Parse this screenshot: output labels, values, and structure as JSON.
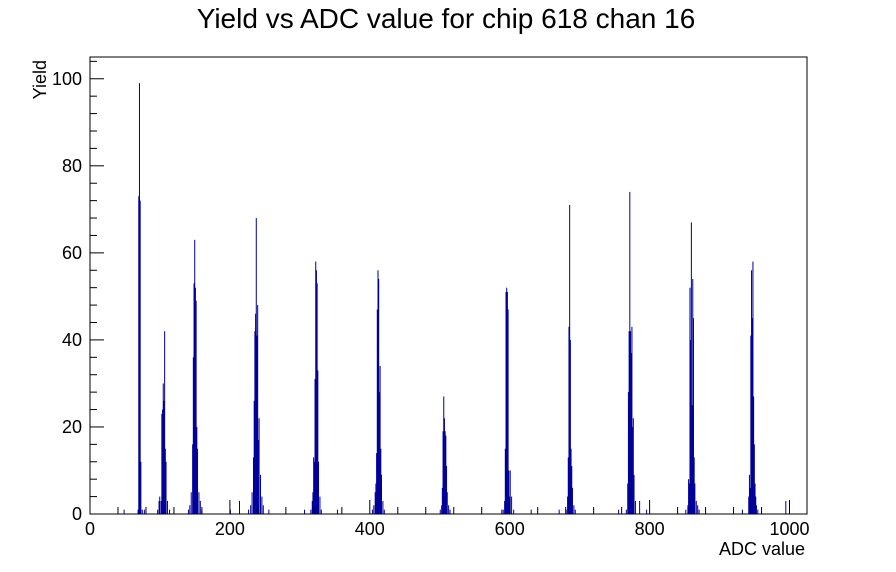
{
  "chart_data": {
    "type": "bar",
    "title": "Yield vs ADC value for chip 618 chan 16",
    "xlabel": "ADC value",
    "ylabel": "Yield",
    "xlim": [
      0,
      1025
    ],
    "ylim": [
      0,
      105
    ],
    "x_ticks": [
      0,
      200,
      400,
      600,
      800,
      1000
    ],
    "y_ticks": [
      0,
      20,
      40,
      60,
      80,
      100
    ],
    "grid": false,
    "series": [
      {
        "color": "#000099",
        "points": [
          [
            48,
            1
          ],
          [
            68,
            1
          ],
          [
            69,
            73
          ],
          [
            70,
            99
          ],
          [
            71,
            72
          ],
          [
            72,
            12
          ],
          [
            74,
            1
          ],
          [
            77,
            1
          ],
          [
            96,
            1
          ],
          [
            98,
            3
          ],
          [
            99,
            4
          ],
          [
            101,
            3
          ],
          [
            102,
            23
          ],
          [
            103,
            24
          ],
          [
            104,
            30
          ],
          [
            105,
            26
          ],
          [
            106,
            42
          ],
          [
            107,
            15
          ],
          [
            108,
            12
          ],
          [
            110,
            3
          ],
          [
            113,
            1
          ],
          [
            140,
            1
          ],
          [
            142,
            2
          ],
          [
            144,
            5
          ],
          [
            146,
            16
          ],
          [
            147,
            36
          ],
          [
            148,
            53
          ],
          [
            149,
            63
          ],
          [
            150,
            52
          ],
          [
            151,
            49
          ],
          [
            152,
            20
          ],
          [
            153,
            15
          ],
          [
            155,
            5
          ],
          [
            157,
            3
          ],
          [
            159,
            1
          ],
          [
            200,
            1
          ],
          [
            213,
            3
          ],
          [
            226,
            1
          ],
          [
            229,
            2
          ],
          [
            231,
            5
          ],
          [
            233,
            13
          ],
          [
            234,
            26
          ],
          [
            235,
            42
          ],
          [
            236,
            46
          ],
          [
            237,
            68
          ],
          [
            238,
            41
          ],
          [
            239,
            48
          ],
          [
            240,
            17
          ],
          [
            241,
            22
          ],
          [
            243,
            9
          ],
          [
            245,
            4
          ],
          [
            247,
            2
          ],
          [
            255,
            1
          ],
          [
            306,
            1
          ],
          [
            315,
            1
          ],
          [
            317,
            3
          ],
          [
            318,
            5
          ],
          [
            319,
            13
          ],
          [
            320,
            12
          ],
          [
            321,
            31
          ],
          [
            322,
            58
          ],
          [
            323,
            56
          ],
          [
            324,
            53
          ],
          [
            325,
            33
          ],
          [
            326,
            12
          ],
          [
            328,
            4
          ],
          [
            330,
            1
          ],
          [
            353,
            1
          ],
          [
            403,
            1
          ],
          [
            405,
            2
          ],
          [
            407,
            5
          ],
          [
            408,
            7
          ],
          [
            409,
            14
          ],
          [
            410,
            47
          ],
          [
            411,
            56
          ],
          [
            412,
            54
          ],
          [
            413,
            28
          ],
          [
            414,
            34
          ],
          [
            415,
            15
          ],
          [
            416,
            9
          ],
          [
            418,
            3
          ],
          [
            420,
            1
          ],
          [
            500,
            1
          ],
          [
            502,
            2
          ],
          [
            503,
            6
          ],
          [
            504,
            19
          ],
          [
            505,
            27
          ],
          [
            506,
            22
          ],
          [
            507,
            19
          ],
          [
            508,
            18
          ],
          [
            509,
            11
          ],
          [
            510,
            5
          ],
          [
            512,
            2
          ],
          [
            514,
            1
          ],
          [
            588,
            1
          ],
          [
            590,
            1
          ],
          [
            592,
            3
          ],
          [
            593,
            15
          ],
          [
            594,
            51
          ],
          [
            595,
            52
          ],
          [
            596,
            51
          ],
          [
            597,
            47
          ],
          [
            598,
            10
          ],
          [
            599,
            4
          ],
          [
            600,
            10
          ],
          [
            602,
            4
          ],
          [
            605,
            1
          ],
          [
            630,
            1
          ],
          [
            670,
            1
          ],
          [
            680,
            1
          ],
          [
            682,
            4
          ],
          [
            683,
            13
          ],
          [
            684,
            43
          ],
          [
            685,
            71
          ],
          [
            686,
            40
          ],
          [
            687,
            15
          ],
          [
            688,
            11
          ],
          [
            689,
            6
          ],
          [
            691,
            2
          ],
          [
            693,
            1
          ],
          [
            755,
            1
          ],
          [
            766,
            1
          ],
          [
            768,
            7
          ],
          [
            769,
            28
          ],
          [
            770,
            42
          ],
          [
            771,
            74
          ],
          [
            772,
            42
          ],
          [
            773,
            37
          ],
          [
            774,
            43
          ],
          [
            775,
            20
          ],
          [
            776,
            22
          ],
          [
            777,
            9
          ],
          [
            779,
            3
          ],
          [
            785,
            3
          ],
          [
            795,
            1
          ],
          [
            851,
            1
          ],
          [
            854,
            2
          ],
          [
            855,
            8
          ],
          [
            856,
            7
          ],
          [
            857,
            52
          ],
          [
            858,
            40
          ],
          [
            859,
            67
          ],
          [
            860,
            25
          ],
          [
            861,
            54
          ],
          [
            862,
            45
          ],
          [
            863,
            13
          ],
          [
            864,
            7
          ],
          [
            866,
            3
          ],
          [
            868,
            2
          ],
          [
            870,
            1
          ],
          [
            932,
            1
          ],
          [
            941,
            4
          ],
          [
            942,
            9
          ],
          [
            943,
            6
          ],
          [
            944,
            41
          ],
          [
            945,
            56
          ],
          [
            946,
            45
          ],
          [
            947,
            58
          ],
          [
            948,
            27
          ],
          [
            949,
            16
          ],
          [
            950,
            7
          ],
          [
            951,
            4
          ],
          [
            952,
            2
          ],
          [
            954,
            1
          ],
          [
            994,
            3
          ]
        ]
      }
    ]
  }
}
